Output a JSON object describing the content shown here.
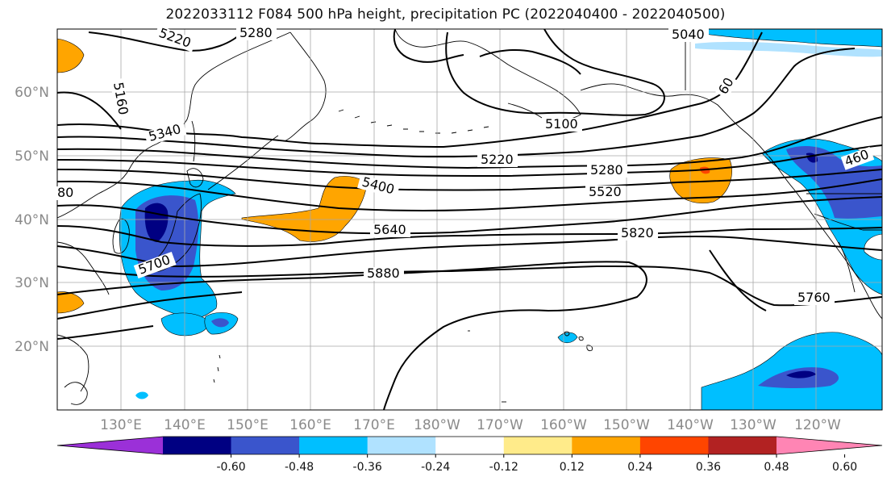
{
  "title": "2022033112 F084 500 hPa height, precipitation PC (2022040400 - 2022040500)",
  "colors": {
    "contour": "#000000",
    "coast": "#000000",
    "grid": "#a8a8a8",
    "axis_label": "#8a8a8a"
  },
  "map": {
    "lat_labels": [
      "60°N",
      "50°N",
      "40°N",
      "30°N",
      "20°N"
    ],
    "lon_labels": [
      "130°E",
      "140°E",
      "150°E",
      "160°E",
      "170°E",
      "180°W",
      "170°W",
      "160°W",
      "150°W",
      "140°W",
      "130°W",
      "120°W"
    ],
    "contour_labels": [
      "5220",
      "5280",
      "5160",
      "5340",
      "80",
      "5700",
      "5400",
      "5220",
      "5100",
      "5040",
      "60",
      "5280",
      "5520",
      "5640",
      "5820",
      "5880",
      "5760",
      "460"
    ]
  },
  "colorbar": {
    "ticks": [
      "-0.60",
      "-0.48",
      "-0.36",
      "-0.24",
      "-0.12",
      "0.12",
      "0.24",
      "0.36",
      "0.48",
      "0.60"
    ],
    "colors": [
      "#9b30d8",
      "#000082",
      "#3a55cc",
      "#00bfff",
      "#b0e2ff",
      "#ffffff",
      "#ffeb8a",
      "#ffa500",
      "#ff4500",
      "#b22222",
      "#ff85b4"
    ]
  }
}
